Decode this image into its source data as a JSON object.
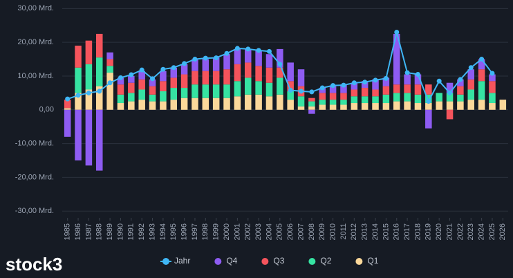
{
  "chart_data": {
    "type": "bar",
    "stacked": true,
    "categories": [
      "1985",
      "1986",
      "1987",
      "1988",
      "1989",
      "1990",
      "1991",
      "1992",
      "1993",
      "1994",
      "1995",
      "1996",
      "1997",
      "1998",
      "1999",
      "2000",
      "2001",
      "2002",
      "2003",
      "2004",
      "2005",
      "2006",
      "2007",
      "2008",
      "2009",
      "2010",
      "2011",
      "2012",
      "2013",
      "2014",
      "2015",
      "2016",
      "2017",
      "2018",
      "2019",
      "2020",
      "2021",
      "2022",
      "2023",
      "2024",
      "2025",
      "2026"
    ],
    "series": [
      {
        "name": "Jahr",
        "type": "line",
        "color": "#3fb6f5",
        "values": [
          3.2,
          4.3,
          5,
          5.5,
          8,
          9.5,
          10.4,
          11.8,
          9.2,
          12,
          12.5,
          13.7,
          15,
          15.3,
          15.4,
          16.7,
          18.2,
          18,
          17.6,
          17.3,
          13.5,
          5.8,
          5.5,
          5.3,
          6.5,
          7.2,
          7.3,
          8,
          8.2,
          8.8,
          9.3,
          23,
          11,
          10.5,
          2.5,
          8.5,
          5,
          9,
          12.5,
          15,
          10.8,
          null
        ]
      },
      {
        "name": "Q4",
        "type": "bar",
        "color": "#8e5cf2",
        "values": [
          -8,
          -15,
          -16.5,
          -18,
          2,
          2,
          2,
          2.5,
          2,
          3,
          3,
          3,
          3.5,
          3.5,
          4,
          4.5,
          4.5,
          4,
          4.5,
          4,
          5.5,
          5.5,
          5,
          -1.2,
          1.5,
          2,
          2.5,
          2,
          2,
          3,
          2.5,
          15,
          3,
          3,
          -5.5,
          null,
          3,
          2,
          3,
          3,
          2,
          null
        ]
      },
      {
        "name": "Q3",
        "type": "bar",
        "color": "#f5545c",
        "values": [
          2.5,
          6.5,
          7,
          7,
          2,
          3,
          3,
          3,
          2.5,
          3,
          3,
          4,
          4,
          4,
          4,
          4.5,
          5,
          4.5,
          4.5,
          4.5,
          3,
          3,
          3,
          1,
          2,
          2,
          2,
          2,
          2.5,
          2,
          2.5,
          2.5,
          2.5,
          3,
          3,
          null,
          -2.8,
          2.5,
          3,
          3.5,
          3.5,
          null
        ]
      },
      {
        "name": "Q2",
        "type": "bar",
        "color": "#36e3a2",
        "values": [
          0,
          7.5,
          7.5,
          8.5,
          2,
          2.5,
          2.5,
          3,
          2,
          3,
          3.5,
          3,
          4,
          4,
          4,
          4,
          4.5,
          5,
          4,
          4,
          5,
          2.5,
          3,
          1.5,
          1.5,
          1.5,
          1.5,
          2,
          2,
          2,
          2.5,
          2.5,
          2.5,
          2.5,
          2.5,
          2.5,
          2.5,
          2,
          3,
          5.5,
          3,
          null
        ]
      },
      {
        "name": "Q1",
        "type": "bar",
        "color": "#fbd89a",
        "values": [
          0.5,
          5,
          6,
          7,
          11,
          2,
          2.5,
          3,
          2.5,
          2.5,
          3,
          3.5,
          3.5,
          3.5,
          3.5,
          3.5,
          4,
          4.5,
          4.5,
          4,
          4.5,
          3,
          1,
          1,
          1.5,
          1.5,
          1.5,
          2,
          2,
          2,
          2,
          2.5,
          2.5,
          2,
          2,
          2.5,
          2.5,
          2.5,
          3,
          3,
          2,
          3
        ]
      }
    ],
    "ylim": [
      -32,
      31.5
    ],
    "yticks": [
      {
        "value": 30,
        "label": "30,00 Mrd."
      },
      {
        "value": 20,
        "label": "20,00 Mrd."
      },
      {
        "value": 10,
        "label": "10,00 Mrd."
      },
      {
        "value": 0,
        "label": "0,00"
      },
      {
        "value": -10,
        "label": "-10,00 Mrd."
      },
      {
        "value": -20,
        "label": "-20,00 Mrd."
      },
      {
        "value": -30,
        "label": "-30,00 Mrd."
      }
    ],
    "grid": true,
    "legend": "bottom",
    "logo": "stock3"
  }
}
